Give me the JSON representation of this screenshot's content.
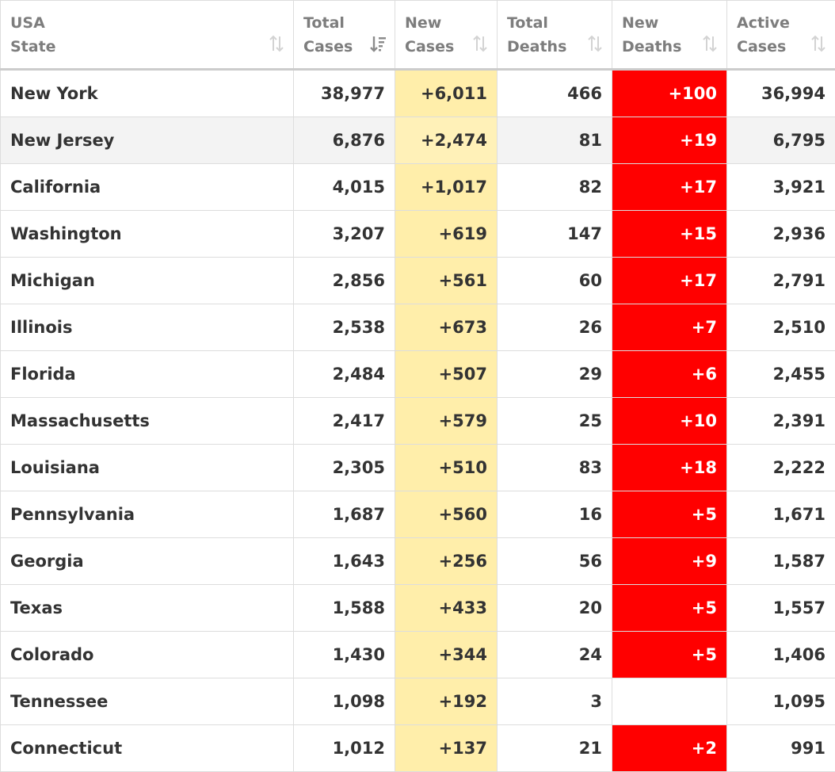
{
  "table": {
    "headers": [
      {
        "label": "USA\nState",
        "sort_icon": "sort-icon"
      },
      {
        "label": "Total\nCases",
        "sort_icon": "sort-desc-active-icon"
      },
      {
        "label": "New\nCases",
        "sort_icon": "sort-icon"
      },
      {
        "label": "Total\nDeaths",
        "sort_icon": "sort-icon"
      },
      {
        "label": "New\nDeaths",
        "sort_icon": "sort-icon"
      },
      {
        "label": "Active\nCases",
        "sort_icon": "sort-icon"
      }
    ],
    "colors": {
      "new_cases_bg": "#ffeeaa",
      "new_deaths_bg": "#ff0000",
      "header_text": "#7d7d7d",
      "body_text": "#333333"
    },
    "rows": [
      {
        "state": "New York",
        "total_cases": "38,977",
        "new_cases": "+6,011",
        "total_deaths": "466",
        "new_deaths": "+100",
        "active_cases": "36,994"
      },
      {
        "state": "New Jersey",
        "total_cases": "6,876",
        "new_cases": "+2,474",
        "total_deaths": "81",
        "new_deaths": "+19",
        "active_cases": "6,795"
      },
      {
        "state": "California",
        "total_cases": "4,015",
        "new_cases": "+1,017",
        "total_deaths": "82",
        "new_deaths": "+17",
        "active_cases": "3,921"
      },
      {
        "state": "Washington",
        "total_cases": "3,207",
        "new_cases": "+619",
        "total_deaths": "147",
        "new_deaths": "+15",
        "active_cases": "2,936"
      },
      {
        "state": "Michigan",
        "total_cases": "2,856",
        "new_cases": "+561",
        "total_deaths": "60",
        "new_deaths": "+17",
        "active_cases": "2,791"
      },
      {
        "state": "Illinois",
        "total_cases": "2,538",
        "new_cases": "+673",
        "total_deaths": "26",
        "new_deaths": "+7",
        "active_cases": "2,510"
      },
      {
        "state": "Florida",
        "total_cases": "2,484",
        "new_cases": "+507",
        "total_deaths": "29",
        "new_deaths": "+6",
        "active_cases": "2,455"
      },
      {
        "state": "Massachusetts",
        "total_cases": "2,417",
        "new_cases": "+579",
        "total_deaths": "25",
        "new_deaths": "+10",
        "active_cases": "2,391"
      },
      {
        "state": "Louisiana",
        "total_cases": "2,305",
        "new_cases": "+510",
        "total_deaths": "83",
        "new_deaths": "+18",
        "active_cases": "2,222"
      },
      {
        "state": "Pennsylvania",
        "total_cases": "1,687",
        "new_cases": "+560",
        "total_deaths": "16",
        "new_deaths": "+5",
        "active_cases": "1,671"
      },
      {
        "state": "Georgia",
        "total_cases": "1,643",
        "new_cases": "+256",
        "total_deaths": "56",
        "new_deaths": "+9",
        "active_cases": "1,587"
      },
      {
        "state": "Texas",
        "total_cases": "1,588",
        "new_cases": "+433",
        "total_deaths": "20",
        "new_deaths": "+5",
        "active_cases": "1,557"
      },
      {
        "state": "Colorado",
        "total_cases": "1,430",
        "new_cases": "+344",
        "total_deaths": "24",
        "new_deaths": "+5",
        "active_cases": "1,406"
      },
      {
        "state": "Tennessee",
        "total_cases": "1,098",
        "new_cases": "+192",
        "total_deaths": "3",
        "new_deaths": "",
        "active_cases": "1,095"
      },
      {
        "state": "Connecticut",
        "total_cases": "1,012",
        "new_cases": "+137",
        "total_deaths": "21",
        "new_deaths": "+2",
        "active_cases": "991"
      }
    ]
  }
}
